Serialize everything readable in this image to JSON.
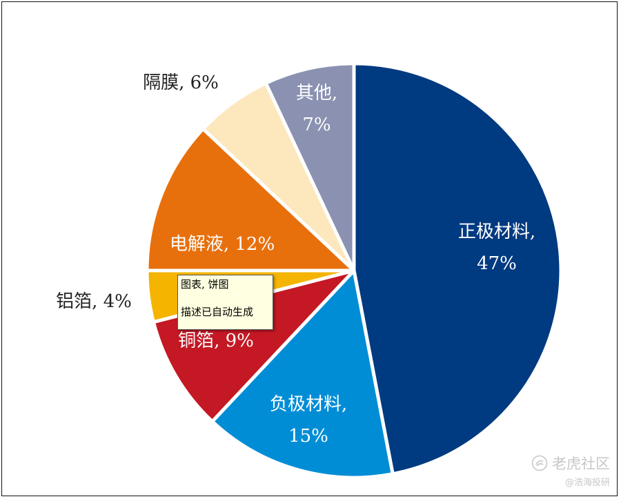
{
  "chart_data": {
    "type": "pie",
    "slices": [
      {
        "name": "正极材料",
        "value": 47,
        "label_lines": [
          "正极材料,",
          "47%"
        ],
        "color": "#003a80",
        "label_color": "#ffffff",
        "inside": true
      },
      {
        "name": "负极材料",
        "value": 15,
        "label_lines": [
          "负极材料,",
          "15%"
        ],
        "color": "#008dd6",
        "label_color": "#ffffff",
        "inside": true
      },
      {
        "name": "铜箔",
        "value": 9,
        "label_lines": [
          "铜箔, 9%"
        ],
        "color": "#c41824",
        "label_color": "#ffffff",
        "inside": true
      },
      {
        "name": "铝箔",
        "value": 4,
        "label_lines": [
          "铝箔, 4%"
        ],
        "color": "#f4b400",
        "label_color": "#222222",
        "inside": false
      },
      {
        "name": "电解液",
        "value": 12,
        "label_lines": [
          "电解液, 12%"
        ],
        "color": "#e8700c",
        "label_color": "#ffffff",
        "inside": true
      },
      {
        "name": "隔膜",
        "value": 6,
        "label_lines": [
          "隔膜, 6%"
        ],
        "color": "#fde7bd",
        "label_color": "#222222",
        "inside": false
      },
      {
        "name": "其他",
        "value": 7,
        "label_lines": [
          "其他,",
          "7%"
        ],
        "color": "#8a91b1",
        "label_color": "#ffffff",
        "inside": true
      }
    ]
  },
  "tooltip": {
    "line1": "图表, 饼图",
    "line2": "描述已自动生成"
  },
  "watermark": {
    "main": "老虎社区",
    "sub": "@浩海投研",
    "icon": "tiger-community-icon"
  }
}
